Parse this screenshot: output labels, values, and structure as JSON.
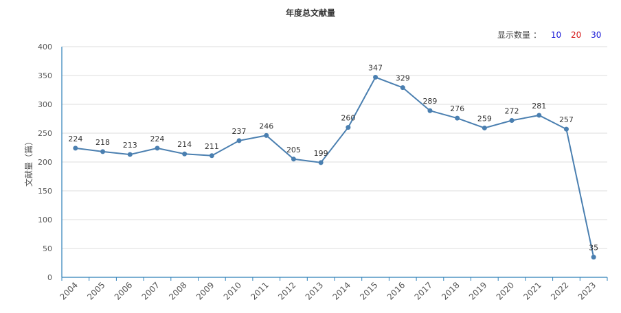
{
  "title": "年度总文献量",
  "display_count": {
    "label": "显示数量",
    "colon": "：",
    "options": [
      "10",
      "20",
      "30"
    ]
  },
  "chart_data": {
    "type": "line",
    "title": "年度总文献量",
    "xlabel": "",
    "ylabel": "文献量（篇）",
    "categories": [
      "2004",
      "2005",
      "2006",
      "2007",
      "2008",
      "2009",
      "2010",
      "2011",
      "2012",
      "2013",
      "2014",
      "2015",
      "2016",
      "2017",
      "2018",
      "2019",
      "2020",
      "2021",
      "2022",
      "2023"
    ],
    "values": [
      224,
      218,
      213,
      224,
      214,
      211,
      237,
      246,
      205,
      199,
      260,
      347,
      329,
      289,
      276,
      259,
      272,
      281,
      257,
      35
    ],
    "ylim": [
      0,
      400
    ],
    "yticks": [
      "0",
      "50",
      "100",
      "150",
      "200",
      "250",
      "300",
      "350",
      "400"
    ],
    "grid": true,
    "line_color": "#4a7fb0"
  }
}
